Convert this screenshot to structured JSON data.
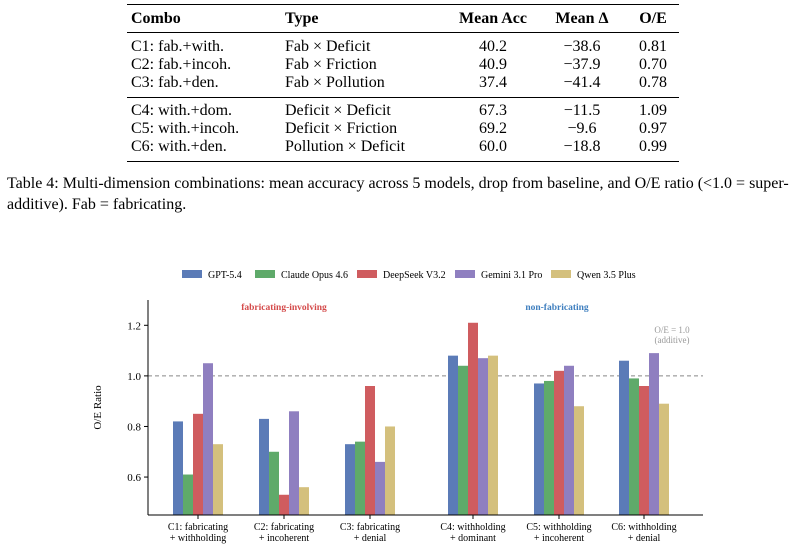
{
  "table": {
    "headers": [
      "Combo",
      "Type",
      "Mean Acc",
      "Mean Δ",
      "O/E"
    ],
    "group1": [
      [
        "C1: fab.+with.",
        "Fab × Deficit",
        "40.2",
        "−38.6",
        "0.81"
      ],
      [
        "C2: fab.+incoh.",
        "Fab × Friction",
        "40.9",
        "−37.9",
        "0.70"
      ],
      [
        "C3: fab.+den.",
        "Fab × Pollution",
        "37.4",
        "−41.4",
        "0.78"
      ]
    ],
    "group2": [
      [
        "C4: with.+dom.",
        "Deficit × Deficit",
        "67.3",
        "−11.5",
        "1.09"
      ],
      [
        "C5: with.+incoh.",
        "Deficit × Friction",
        "69.2",
        "−9.6",
        "0.97"
      ],
      [
        "C6: with.+den.",
        "Pollution × Deficit",
        "60.0",
        "−18.8",
        "0.99"
      ]
    ]
  },
  "caption": "Table 4: Multi-dimension combinations: mean accuracy across 5 models, drop from baseline, and O/E ratio (<1.0 = super-additive). Fab = fabricating.",
  "chart_data": {
    "type": "bar",
    "ylabel": "O/E Ratio",
    "ylim": [
      0.45,
      1.3
    ],
    "yticks": [
      0.6,
      0.8,
      1.0,
      1.2
    ],
    "categories": [
      [
        "C1: fabricating",
        "+ withholding"
      ],
      [
        "C2: fabricating",
        "+ incoherent"
      ],
      [
        "C3: fabricating",
        "+ denial"
      ],
      [
        "C4: withholding",
        "+ dominant"
      ],
      [
        "C5: withholding",
        "+ incoherent"
      ],
      [
        "C6: withholding",
        "+ denial"
      ]
    ],
    "series": [
      {
        "name": "GPT-5.4",
        "color": "#5b7bb7",
        "values": [
          0.82,
          0.83,
          0.73,
          1.08,
          0.97,
          1.06
        ]
      },
      {
        "name": "Claude Opus 4.6",
        "color": "#5faa6a",
        "values": [
          0.61,
          0.7,
          0.74,
          1.04,
          0.98,
          0.99
        ]
      },
      {
        "name": "DeepSeek V3.2",
        "color": "#cf5c5f",
        "values": [
          0.85,
          0.53,
          0.96,
          1.21,
          1.02,
          0.96
        ]
      },
      {
        "name": "Gemini 3.1 Pro",
        "color": "#8f7fc0",
        "values": [
          1.05,
          0.86,
          0.66,
          1.07,
          1.04,
          1.09
        ]
      },
      {
        "name": "Qwen 3.5 Plus",
        "color": "#d4c07d",
        "values": [
          0.73,
          0.56,
          0.8,
          1.08,
          0.88,
          0.89
        ]
      }
    ],
    "reference_line": {
      "value": 1.0,
      "label1": "O/E = 1.0",
      "label2": "(additive)",
      "color": "#888888"
    },
    "annotations": [
      {
        "text": "fabricating-involving",
        "color": "#d44a4a"
      },
      {
        "text": "non-fabricating",
        "color": "#3f7fbf"
      }
    ],
    "grid": false,
    "legend": "top"
  }
}
